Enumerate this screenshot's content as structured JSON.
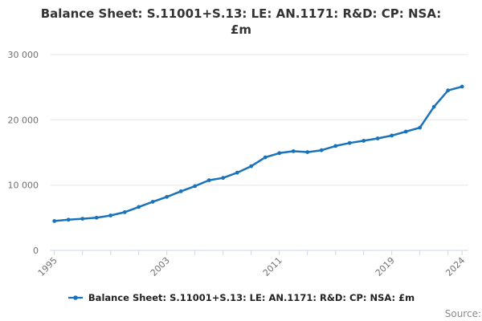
{
  "title": {
    "line1": "Balance Sheet: S.11001+S.13: LE: AN.1171: R&D: CP: NSA:",
    "line2": "£m"
  },
  "legend": {
    "label": "Balance Sheet: S.11001+S.13: LE: AN.1171: R&D: CP: NSA: £m"
  },
  "footer": {
    "source_label": "Source:"
  },
  "colors": {
    "line": "#1a73ba",
    "marker": "#1a73ba",
    "grid": "#e6e6e6",
    "axis": "#ccd6eb",
    "tick_label": "#707070",
    "title_text": "#333333",
    "legend_text": "#222222",
    "source_text": "#8a8a8a"
  },
  "chart_data": {
    "type": "line",
    "title": "Balance Sheet: S.11001+S.13: LE: AN.1171: R&D: CP: NSA: £m",
    "x": [
      1995,
      1996,
      1997,
      1998,
      1999,
      2000,
      2001,
      2002,
      2003,
      2004,
      2005,
      2006,
      2007,
      2008,
      2009,
      2010,
      2011,
      2012,
      2013,
      2014,
      2015,
      2016,
      2017,
      2018,
      2019,
      2020,
      2021,
      2022,
      2023,
      2024
    ],
    "series": [
      {
        "name": "Balance Sheet: S.11001+S.13: LE: AN.1171: R&D: CP: NSA: £m",
        "values": [
          4500,
          4700,
          4850,
          5000,
          5350,
          5850,
          6650,
          7450,
          8200,
          9050,
          9850,
          10750,
          11100,
          11900,
          12900,
          14250,
          14900,
          15200,
          15050,
          15350,
          16000,
          16450,
          16800,
          17150,
          17600,
          18200,
          18800,
          22000,
          24500,
          25100
        ]
      }
    ],
    "xlabel": "",
    "ylabel": "",
    "ylim": [
      0,
      30000
    ],
    "yticks": [
      0,
      10000,
      20000,
      30000
    ],
    "ytick_labels": [
      "0",
      "10 000",
      "20 000",
      "30 000"
    ],
    "xtick_labels_shown": [
      "1995",
      "2003",
      "2011",
      "2019",
      "2024"
    ],
    "xtick_minor_interval_years": 2,
    "grid": "horizontal",
    "legend_position": "bottom",
    "marker": "circle"
  }
}
